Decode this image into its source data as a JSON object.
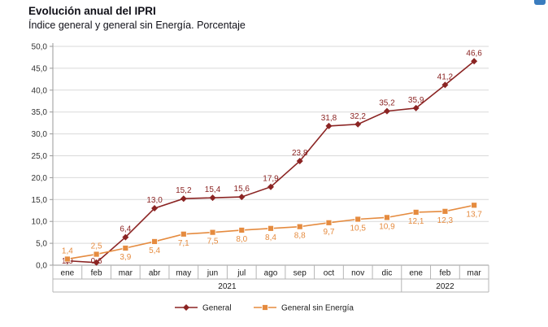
{
  "title": "Evolución anual del IPRI",
  "subtitle": "Índice general y general sin Energía. Porcentaje",
  "chart_data": {
    "type": "line",
    "categories": [
      "ene",
      "feb",
      "mar",
      "abr",
      "may",
      "jun",
      "jul",
      "ago",
      "sep",
      "oct",
      "nov",
      "dic",
      "ene",
      "feb",
      "mar"
    ],
    "year_groups": [
      {
        "label": "2021",
        "span": 12
      },
      {
        "label": "2022",
        "span": 3
      }
    ],
    "series": [
      {
        "name": "General",
        "color": "#8b2423",
        "marker": "diamond",
        "values": [
          1.0,
          0.6,
          6.4,
          13.0,
          15.2,
          15.4,
          15.6,
          17.9,
          23.8,
          31.8,
          32.2,
          35.2,
          35.9,
          41.2,
          46.6
        ],
        "labels": [
          "1,0",
          "0,6",
          "6,4",
          "13,0",
          "15,2",
          "15,4",
          "15,6",
          "17,9",
          "23,8",
          "31,8",
          "32,2",
          "35,2",
          "35,9",
          "41,2",
          "46,6"
        ]
      },
      {
        "name": "General sin Energía",
        "color": "#e58b3f",
        "marker": "square",
        "values": [
          1.4,
          2.5,
          3.9,
          5.4,
          7.1,
          7.5,
          8.0,
          8.4,
          8.8,
          9.7,
          10.5,
          10.9,
          12.1,
          12.3,
          13.7
        ],
        "labels": [
          "1,4",
          "2,5",
          "3,9",
          "5,4",
          "7,1",
          "7,5",
          "8,0",
          "8,4",
          "8,8",
          "9,7",
          "10,5",
          "10,9",
          "12,1",
          "12,3",
          "13,7"
        ]
      }
    ],
    "ylim": [
      0,
      50
    ],
    "ytick_step": 5,
    "ytick_labels": [
      "0,0",
      "5,0",
      "10,0",
      "15,0",
      "20,0",
      "25,0",
      "30,0",
      "35,0",
      "40,0",
      "45,0",
      "50,0"
    ],
    "grid": true,
    "legend_position": "bottom",
    "axis_color": "#9a9a9a",
    "grid_color": "#d9d9d9",
    "table_border_color": "#b5b5b5",
    "tick_label_color": "#333333"
  }
}
